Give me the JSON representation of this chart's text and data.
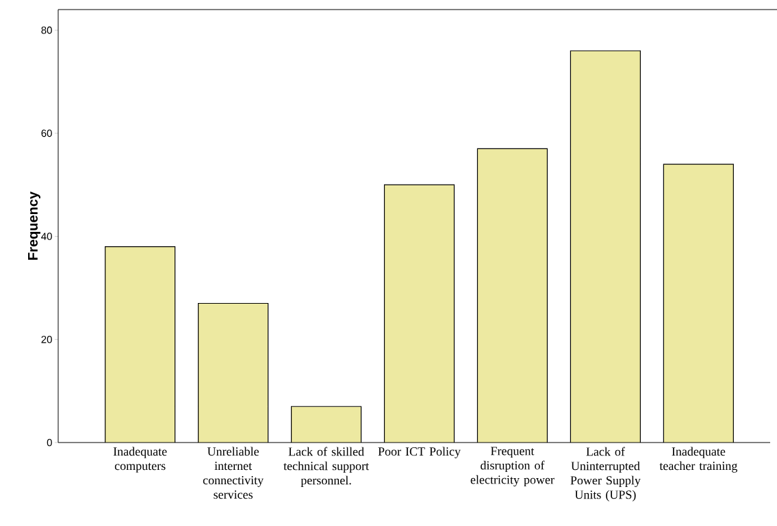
{
  "chart_data": {
    "type": "bar",
    "ylabel": "Frequency",
    "categories": [
      "Inadequate computers",
      "Unreliable internet connectivity services",
      "Lack of skilled technical support personnel.",
      "Poor ICT Policy",
      "Frequent disruption of electricity power",
      "Lack of Uninterrupted Power Supply Units (UPS)",
      "Inadequate teacher training"
    ],
    "values": [
      38,
      27,
      7,
      50,
      57,
      76,
      54
    ],
    "color": "#ede9a1",
    "ylim": [
      0,
      84
    ],
    "yticks": [
      0,
      20,
      40,
      60,
      80
    ],
    "grid": false
  }
}
